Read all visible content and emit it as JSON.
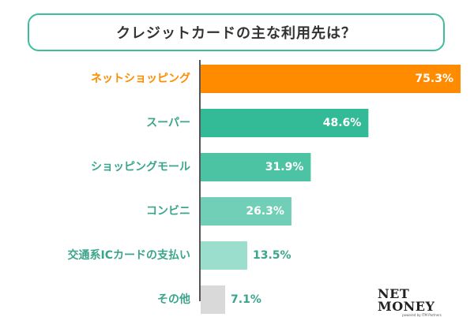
{
  "chart_data": {
    "type": "bar",
    "orientation": "horizontal",
    "title": "クレジットカードの主な利用先は？",
    "categories": [
      "ネットショッピング",
      "スーパー",
      "ショッピングモール",
      "コンビニ",
      "交通系ICカードの支払い",
      "その他"
    ],
    "values": [
      75.3,
      48.6,
      31.9,
      26.3,
      13.5,
      7.1
    ],
    "value_labels": [
      "75.3%",
      "48.6%",
      "31.9%",
      "26.3%",
      "13.5%",
      "7.1%"
    ],
    "unit": "%",
    "xlim": [
      0,
      75.3
    ],
    "bar_colors": [
      "#ff8c00",
      "#33bb97",
      "#4cc3a3",
      "#70cfb6",
      "#9cdecd",
      "#d9d9d9"
    ],
    "category_colors": [
      "#ff8c00",
      "#3aa58a",
      "#3aa58a",
      "#3aa58a",
      "#3aa58a",
      "#3aa58a"
    ],
    "grid": false,
    "legend": "none"
  },
  "colors": {
    "accent": "#3dbd9b",
    "highlight": "#ff8c00",
    "axis": "#555555",
    "value_inside": "#ffffff",
    "value_outside": "#3aa58a"
  },
  "brand": {
    "logo": "NET MONEY",
    "logo_sub": "powered by ITM Partners"
  }
}
